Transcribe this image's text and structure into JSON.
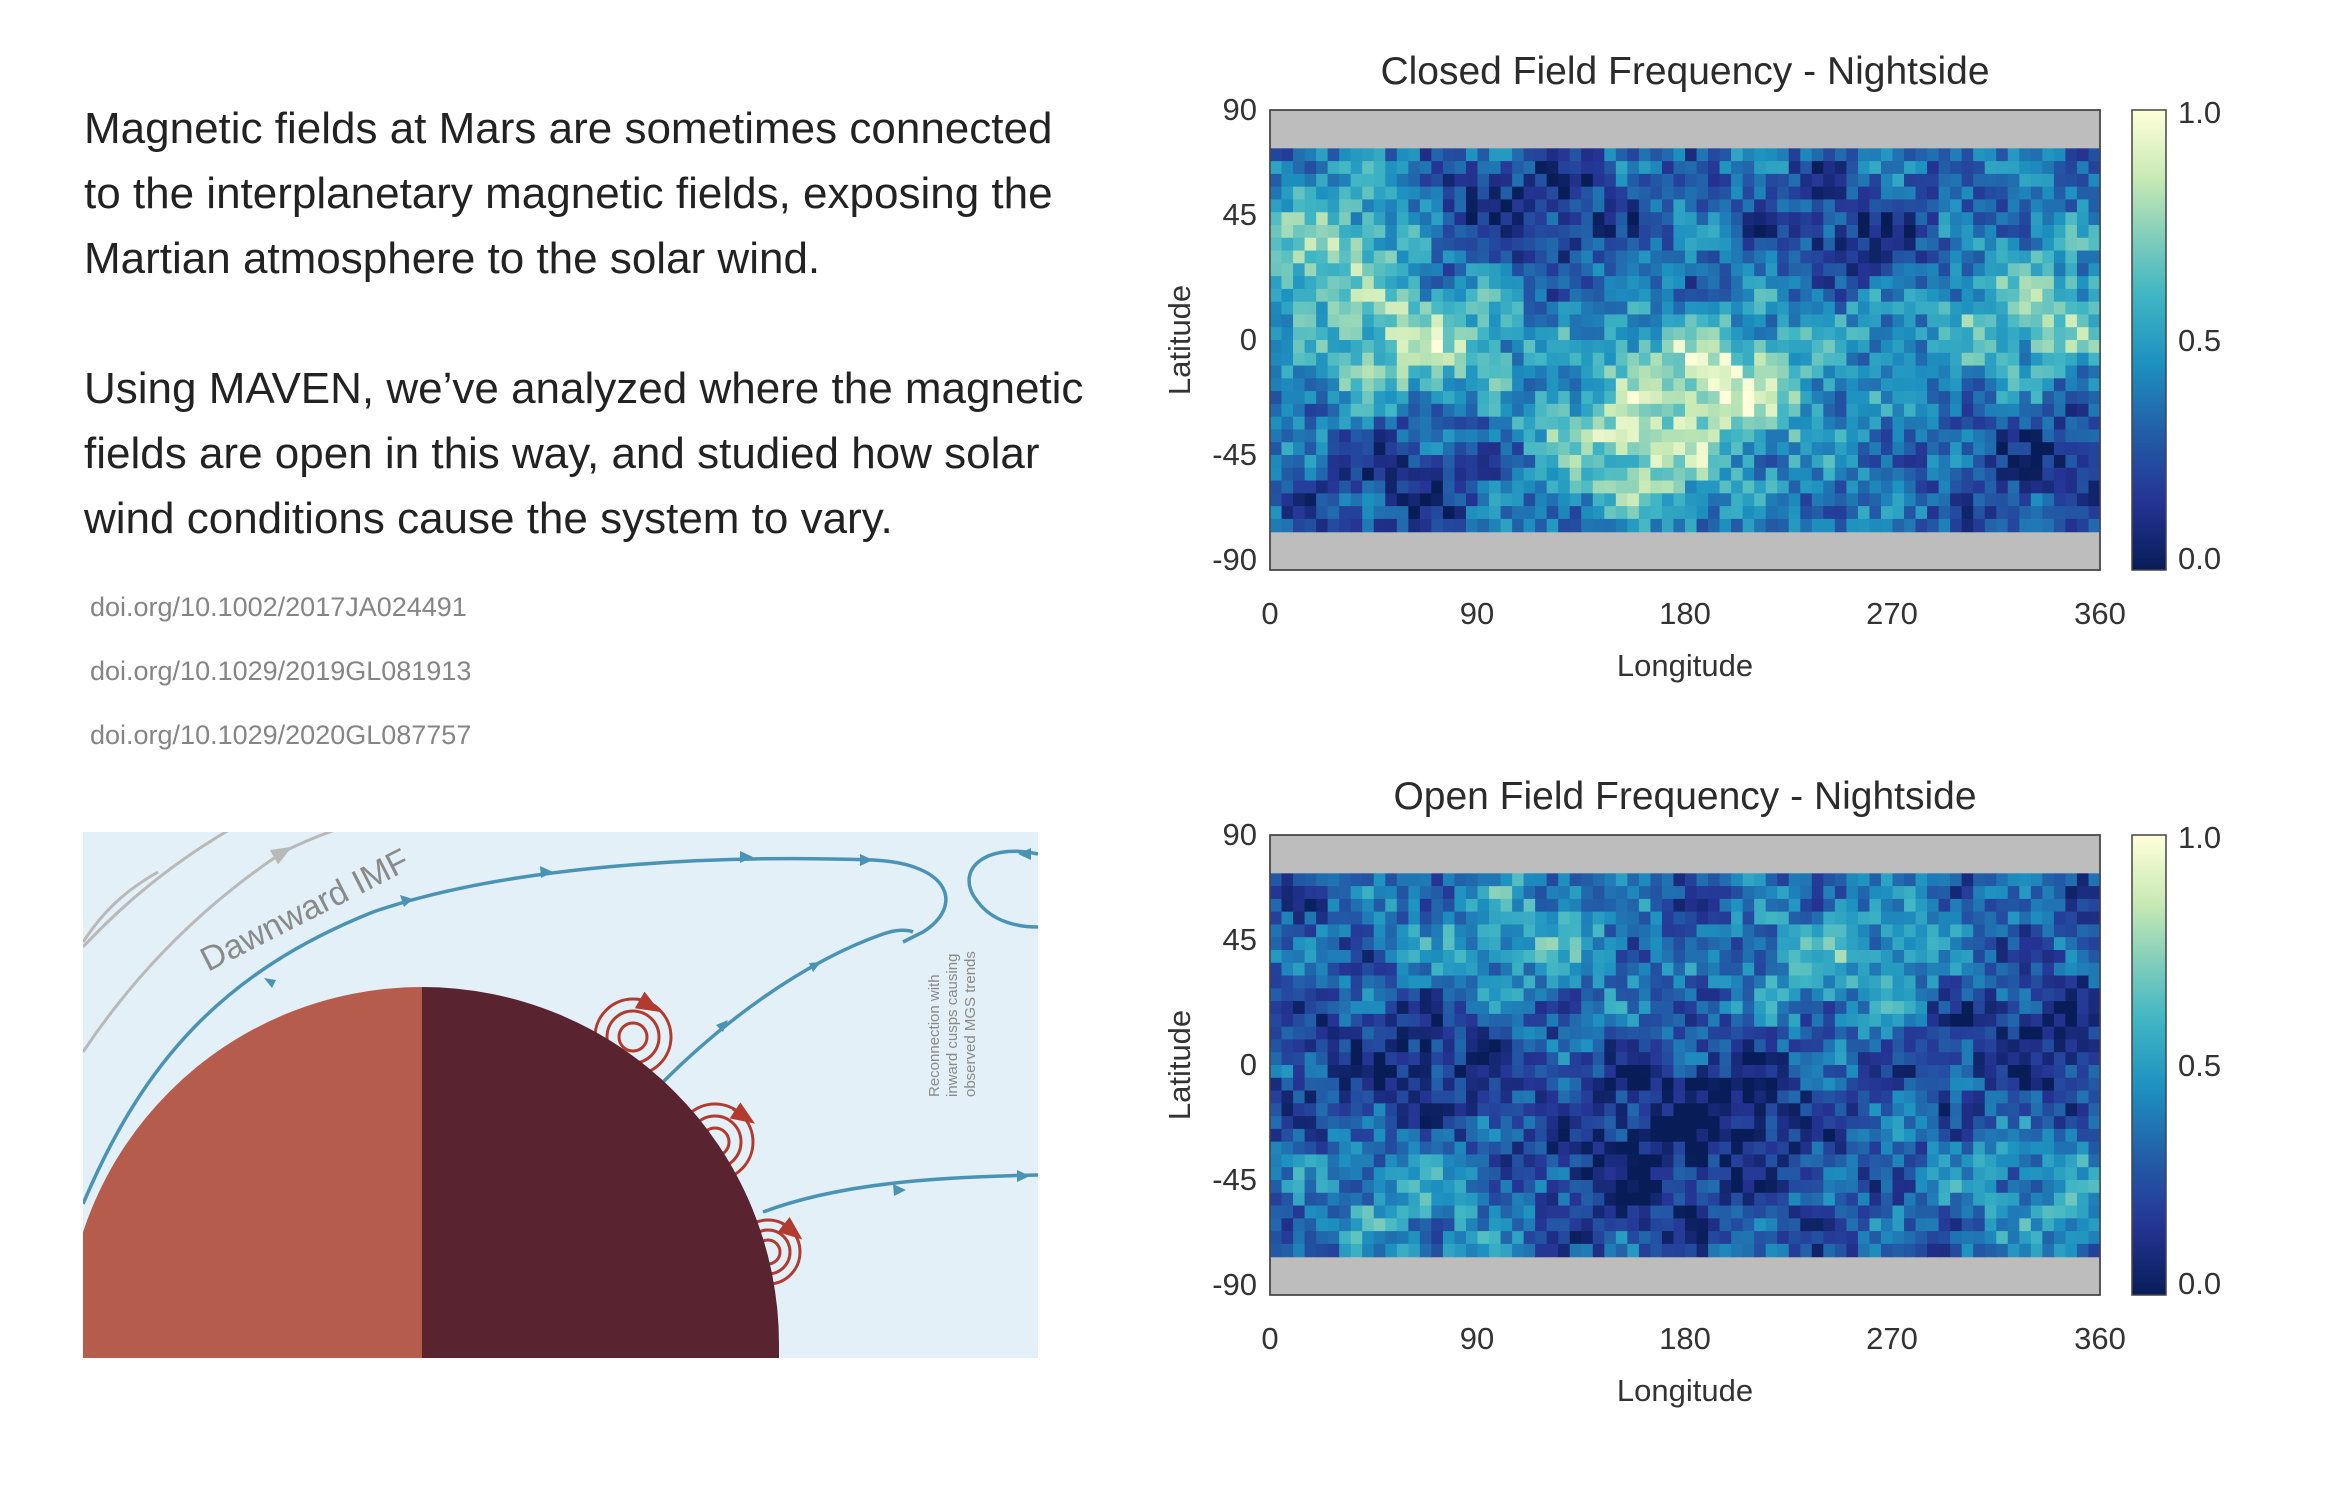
{
  "intro": {
    "paragraphs": [
      "Magnetic fields at Mars are sometimes connected to the interplanetary magnetic fields, exposing the Martian atmosphere to the solar wind.",
      "Using MAVEN, we’ve analyzed where the magnetic fields are open in this way, and studied how solar wind conditions cause the system to vary."
    ]
  },
  "references": [
    "doi.org/10.1002/2017JA024491",
    "doi.org/10.1029/2019GL081913",
    "doi.org/10.1029/2020GL087757"
  ],
  "diagram": {
    "imf_label": "Dawnward IMF",
    "annotation_lines": [
      "Reconnection with",
      "inward cusps causing",
      "observed MGS trends"
    ],
    "colors": {
      "background": "#e3f0f7",
      "field_line": "#4a93b4",
      "imf_line": "#b9b9b9",
      "planet_day": "#b65c4d",
      "planet_night": "#5a2330",
      "cusp_loops": "#b33a2e"
    }
  },
  "chart_data": [
    {
      "type": "heatmap",
      "title": "Closed Field Frequency - Nightside",
      "xlabel": "Longitude",
      "ylabel": "Latitude",
      "xlim": [
        0,
        360
      ],
      "ylim": [
        -90,
        90
      ],
      "xticks": [
        "0",
        "90",
        "180",
        "270",
        "360"
      ],
      "yticks": [
        "90",
        "45",
        "0",
        "-45",
        "-90"
      ],
      "data_lat_range": [
        -75,
        75
      ],
      "grid": false,
      "colorbar": {
        "min": 0.0,
        "max": 1.0,
        "ticks": [
          "1.0",
          "0.5",
          "0.0"
        ],
        "colormap": "YlGnBu"
      },
      "missing_color": "#bdbdbd",
      "grid_cells": [
        72,
        30
      ],
      "features": {
        "high_regions": [
          {
            "lon": 190,
            "lat": -18,
            "value": 0.9
          },
          {
            "lon": 160,
            "lat": -40,
            "value": 0.85
          },
          {
            "lon": 60,
            "lat": 0,
            "value": 0.82
          },
          {
            "lon": 30,
            "lat": 35,
            "value": 0.75
          },
          {
            "lon": 330,
            "lat": 10,
            "value": 0.72
          },
          {
            "lon": 240,
            "lat": 15,
            "value": 0.6
          }
        ],
        "low_regions": [
          {
            "lon": 110,
            "lat": 50,
            "value": 0.1
          },
          {
            "lon": 250,
            "lat": 40,
            "value": 0.1
          },
          {
            "lon": 60,
            "lat": -55,
            "value": 0.15
          },
          {
            "lon": 340,
            "lat": -50,
            "value": 0.15
          }
        ]
      }
    },
    {
      "type": "heatmap",
      "title": "Open Field Frequency - Nightside",
      "xlabel": "Longitude",
      "ylabel": "Latitude",
      "xlim": [
        0,
        360
      ],
      "ylim": [
        -90,
        90
      ],
      "xticks": [
        "0",
        "90",
        "180",
        "270",
        "360"
      ],
      "yticks": [
        "90",
        "45",
        "0",
        "-45",
        "-90"
      ],
      "data_lat_range": [
        -75,
        75
      ],
      "grid": false,
      "colorbar": {
        "min": 0.0,
        "max": 1.0,
        "ticks": [
          "1.0",
          "0.5",
          "0.0"
        ],
        "colormap": "YlGnBu"
      },
      "missing_color": "#bdbdbd",
      "grid_cells": [
        72,
        30
      ],
      "features": {
        "high_regions": [
          {
            "lon": 110,
            "lat": 50,
            "value": 0.55
          },
          {
            "lon": 250,
            "lat": 40,
            "value": 0.55
          },
          {
            "lon": 60,
            "lat": -55,
            "value": 0.5
          },
          {
            "lon": 340,
            "lat": -50,
            "value": 0.5
          }
        ],
        "low_regions": [
          {
            "lon": 190,
            "lat": -18,
            "value": 0.03
          },
          {
            "lon": 160,
            "lat": -40,
            "value": 0.05
          },
          {
            "lon": 60,
            "lat": 0,
            "value": 0.08
          },
          {
            "lon": 330,
            "lat": 10,
            "value": 0.1
          }
        ]
      }
    }
  ]
}
